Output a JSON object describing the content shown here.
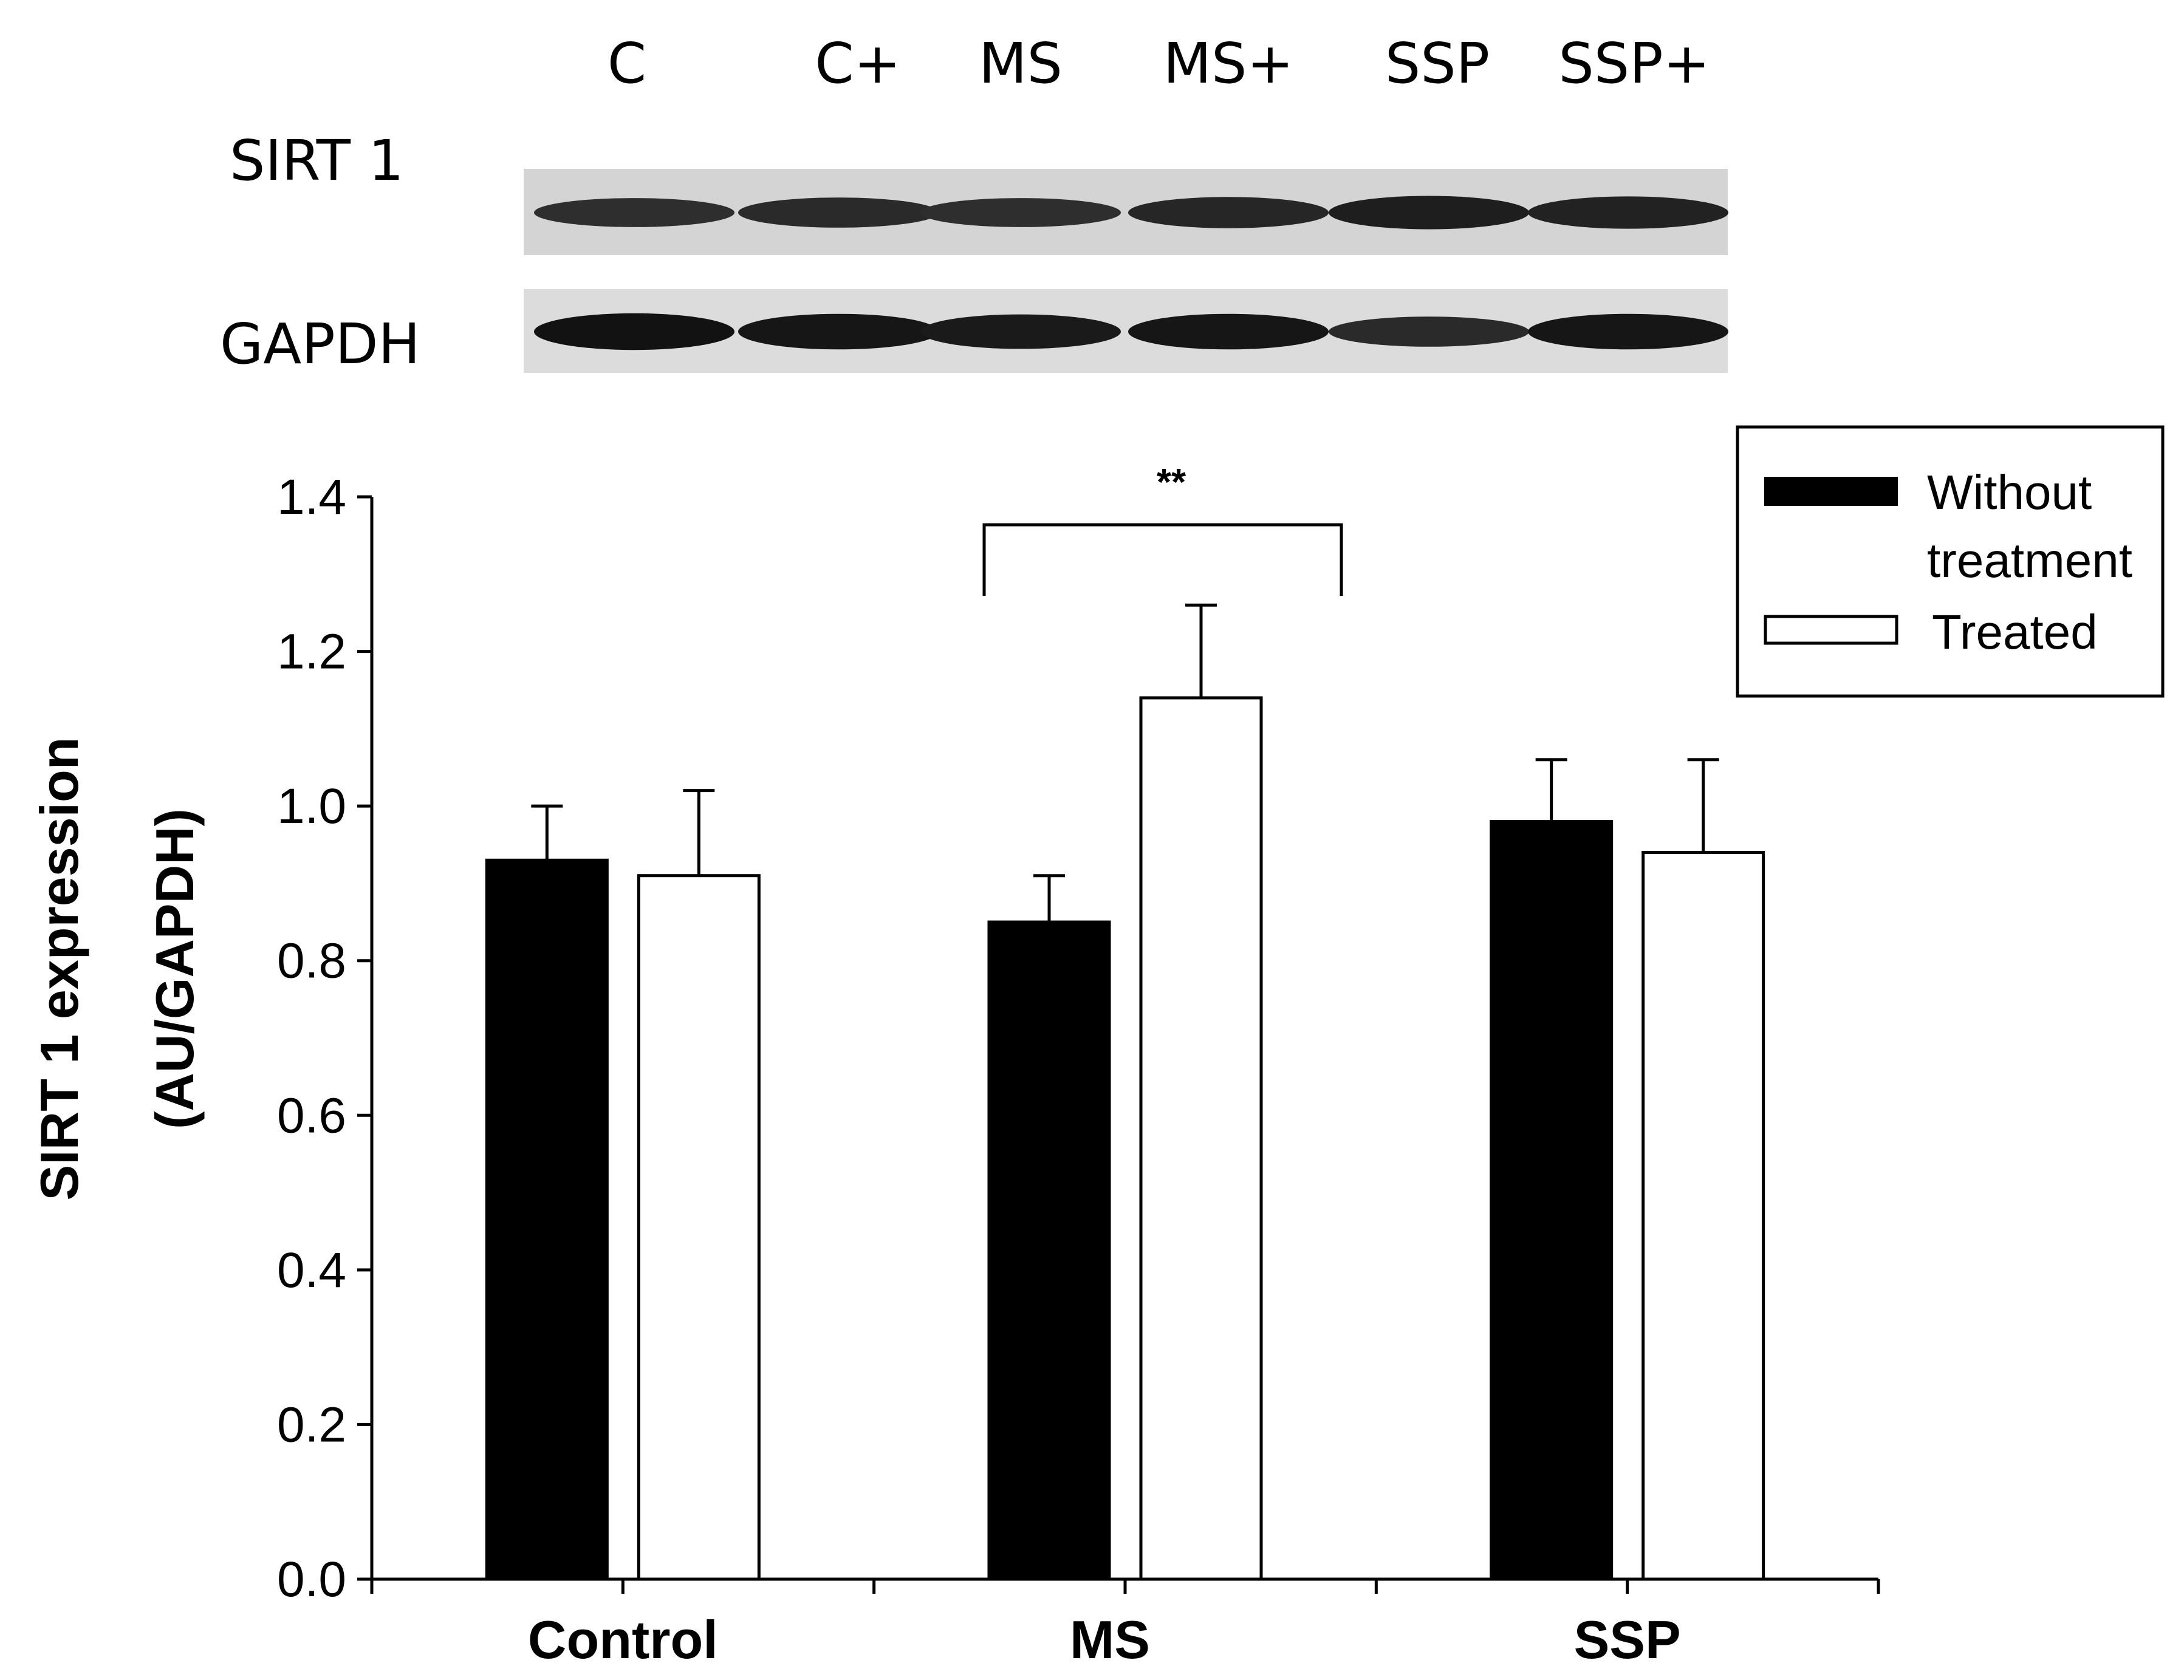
{
  "blot": {
    "lane_labels": [
      "C",
      "C+",
      "MS",
      "MS+",
      "SSP",
      "SSP+"
    ],
    "rows": [
      {
        "label": "SIRT 1",
        "band_intensity": [
          0.55,
          0.6,
          0.55,
          0.65,
          0.75,
          0.7
        ]
      },
      {
        "label": "GAPDH",
        "band_intensity": [
          0.9,
          0.85,
          0.8,
          0.85,
          0.6,
          0.85
        ]
      }
    ]
  },
  "chart_data": {
    "type": "bar",
    "categories": [
      "Control",
      "MS",
      "SSP"
    ],
    "series": [
      {
        "name": "Without treatment",
        "values": [
          0.93,
          0.85,
          0.98
        ],
        "errors": [
          0.07,
          0.06,
          0.08
        ],
        "color": "#000000"
      },
      {
        "name": "Treated",
        "values": [
          0.91,
          1.14,
          0.94
        ],
        "errors": [
          0.11,
          0.12,
          0.12
        ],
        "color": "#ffffff"
      }
    ],
    "ylabel_line1": "SIRT 1  expression",
    "ylabel_line2": "(AU/GAPDH)",
    "ylim": [
      0,
      1.4
    ],
    "yticks": [
      "0.0",
      "0.2",
      "0.4",
      "0.6",
      "0.8",
      "1.0",
      "1.2",
      "1.4"
    ],
    "legend_position": "top-right",
    "legend": {
      "line1": "Without",
      "line2": "treatment",
      "line3": "Treated"
    },
    "annotation": {
      "text": "**",
      "category": "MS"
    }
  }
}
